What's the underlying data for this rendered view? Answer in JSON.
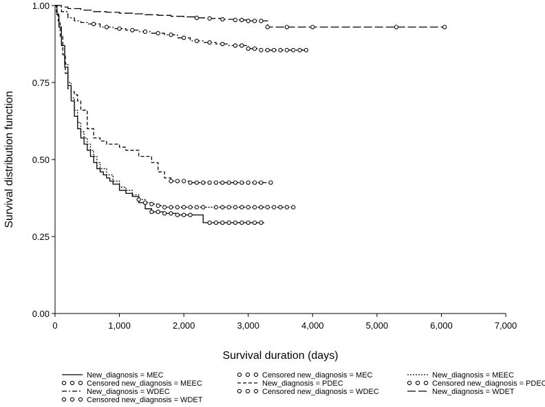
{
  "chart_data": {
    "type": "line",
    "title": "",
    "xlabel": "Survival duration (days)",
    "ylabel": "Survival distribution function",
    "xlim": [
      0,
      7000
    ],
    "ylim": [
      0,
      1
    ],
    "x_ticks": [
      0,
      1000,
      2000,
      3000,
      4000,
      5000,
      6000,
      7000
    ],
    "x_tick_labels": [
      "0",
      "1,000",
      "2,000",
      "3,000",
      "4,000",
      "5,000",
      "6,000",
      "7,000"
    ],
    "y_ticks": [
      0,
      0.25,
      0.5,
      0.75,
      1.0
    ],
    "y_tick_labels": [
      "0.00",
      "0.25",
      "0.50",
      "0.75",
      "1.00"
    ],
    "grid": false,
    "legend_position": "bottom",
    "legend": [
      {
        "label": "New_diagnosis = MEC",
        "kind": "line",
        "dash": "solid"
      },
      {
        "label": "Censored new_diagnosis = MEC",
        "kind": "markers"
      },
      {
        "label": "New_diagnosis = MEEC",
        "kind": "line",
        "dash": "dotted"
      },
      {
        "label": "Censored new_diagnosis = MEEC",
        "kind": "markers"
      },
      {
        "label": "New_diagnosis = PDEC",
        "kind": "line",
        "dash": "dashed"
      },
      {
        "label": "Censored new_diagnosis = PDEC",
        "kind": "markers"
      },
      {
        "label": "New_diagnosis = WDEC",
        "kind": "line",
        "dash": "dashdot"
      },
      {
        "label": "Censored new_diagnosis = WDEC",
        "kind": "markers"
      },
      {
        "label": "New_diagnosis = WDET",
        "kind": "line",
        "dash": "longdash"
      },
      {
        "label": "Censored new_diagnosis = WDET",
        "kind": "markers"
      }
    ],
    "series": [
      {
        "name": "MEC",
        "dash": "solid",
        "x": [
          0,
          30,
          60,
          100,
          150,
          200,
          250,
          300,
          350,
          400,
          450,
          500,
          550,
          600,
          650,
          700,
          750,
          800,
          850,
          900,
          1000,
          1100,
          1200,
          1300,
          1400,
          1500,
          1700,
          1900,
          2100,
          2300,
          2400,
          2600,
          2800,
          3000,
          3250
        ],
        "y": [
          1.0,
          0.97,
          0.93,
          0.87,
          0.8,
          0.74,
          0.69,
          0.64,
          0.6,
          0.57,
          0.55,
          0.53,
          0.51,
          0.49,
          0.47,
          0.46,
          0.45,
          0.44,
          0.43,
          0.42,
          0.4,
          0.39,
          0.38,
          0.36,
          0.34,
          0.33,
          0.325,
          0.32,
          0.32,
          0.295,
          0.295,
          0.295,
          0.295,
          0.295,
          0.295
        ],
        "censored": [
          1500,
          1600,
          1700,
          1800,
          1900,
          2000,
          2100,
          2400,
          2500,
          2600,
          2700,
          2800,
          2900,
          3000,
          3100,
          3200
        ]
      },
      {
        "name": "MEEC",
        "dash": "dotted",
        "x": [
          0,
          30,
          60,
          100,
          150,
          200,
          250,
          300,
          350,
          400,
          450,
          500,
          550,
          600,
          650,
          700,
          800,
          900,
          1000,
          1100,
          1200,
          1300,
          1400,
          1500,
          1600,
          1700,
          1900,
          2100,
          2300,
          2500,
          2700,
          3000,
          3300,
          3700
        ],
        "y": [
          1.0,
          0.97,
          0.93,
          0.87,
          0.81,
          0.75,
          0.7,
          0.66,
          0.62,
          0.59,
          0.57,
          0.55,
          0.53,
          0.51,
          0.49,
          0.47,
          0.45,
          0.43,
          0.41,
          0.4,
          0.385,
          0.37,
          0.36,
          0.355,
          0.35,
          0.345,
          0.345,
          0.345,
          0.345,
          0.345,
          0.345,
          0.345,
          0.345,
          0.345
        ],
        "censored": [
          1300,
          1400,
          1500,
          1600,
          1700,
          1800,
          1900,
          2000,
          2100,
          2200,
          2300,
          2500,
          2600,
          2700,
          2800,
          2900,
          3000,
          3100,
          3200,
          3300,
          3400,
          3500,
          3600,
          3700
        ]
      },
      {
        "name": "PDEC",
        "dash": "dashed",
        "x": [
          0,
          20,
          50,
          80,
          120,
          160,
          200,
          250,
          300,
          350,
          400,
          500,
          600,
          700,
          800,
          900,
          1000,
          1100,
          1300,
          1500,
          1600,
          1700,
          1800,
          2100,
          2400,
          2700,
          3000,
          3350
        ],
        "y": [
          1.0,
          0.98,
          0.95,
          0.9,
          0.84,
          0.78,
          0.73,
          0.72,
          0.71,
          0.69,
          0.66,
          0.6,
          0.57,
          0.56,
          0.55,
          0.55,
          0.54,
          0.53,
          0.51,
          0.49,
          0.46,
          0.44,
          0.43,
          0.425,
          0.425,
          0.425,
          0.425,
          0.425
        ],
        "censored": [
          1800,
          1900,
          2000,
          2100,
          2200,
          2300,
          2400,
          2500,
          2600,
          2700,
          2800,
          2900,
          3000,
          3100,
          3200,
          3350
        ]
      },
      {
        "name": "WDEC",
        "dash": "dashdot",
        "x": [
          0,
          100,
          200,
          300,
          400,
          500,
          700,
          900,
          1100,
          1300,
          1500,
          1700,
          1900,
          2100,
          2300,
          2500,
          2700,
          2900,
          3000,
          3200,
          3400,
          3600,
          3800,
          3950
        ],
        "y": [
          1.0,
          0.98,
          0.96,
          0.95,
          0.945,
          0.94,
          0.93,
          0.925,
          0.92,
          0.915,
          0.91,
          0.905,
          0.895,
          0.885,
          0.88,
          0.875,
          0.87,
          0.87,
          0.86,
          0.855,
          0.855,
          0.855,
          0.855,
          0.855
        ],
        "censored": [
          600,
          800,
          1000,
          1200,
          1400,
          1600,
          1800,
          2000,
          2200,
          2400,
          2600,
          2800,
          2900,
          3000,
          3100,
          3200,
          3300,
          3400,
          3500,
          3600,
          3700,
          3800,
          3900
        ]
      },
      {
        "name": "WDET",
        "dash": "longdash",
        "x": [
          0,
          100,
          200,
          400,
          600,
          800,
          1000,
          1200,
          1400,
          1600,
          1800,
          2000,
          2200,
          2400,
          2600,
          2800,
          3000,
          3200,
          3300,
          3500,
          4000,
          5000,
          6000,
          6050
        ],
        "y": [
          1.0,
          0.995,
          0.99,
          0.985,
          0.98,
          0.978,
          0.975,
          0.973,
          0.97,
          0.968,
          0.965,
          0.963,
          0.96,
          0.958,
          0.955,
          0.953,
          0.95,
          0.95,
          0.93,
          0.93,
          0.93,
          0.93,
          0.93,
          0.93
        ],
        "censored": [
          2200,
          2400,
          2600,
          2800,
          2900,
          3000,
          3100,
          3200,
          3300,
          3600,
          4000,
          5300,
          6050
        ]
      }
    ]
  }
}
